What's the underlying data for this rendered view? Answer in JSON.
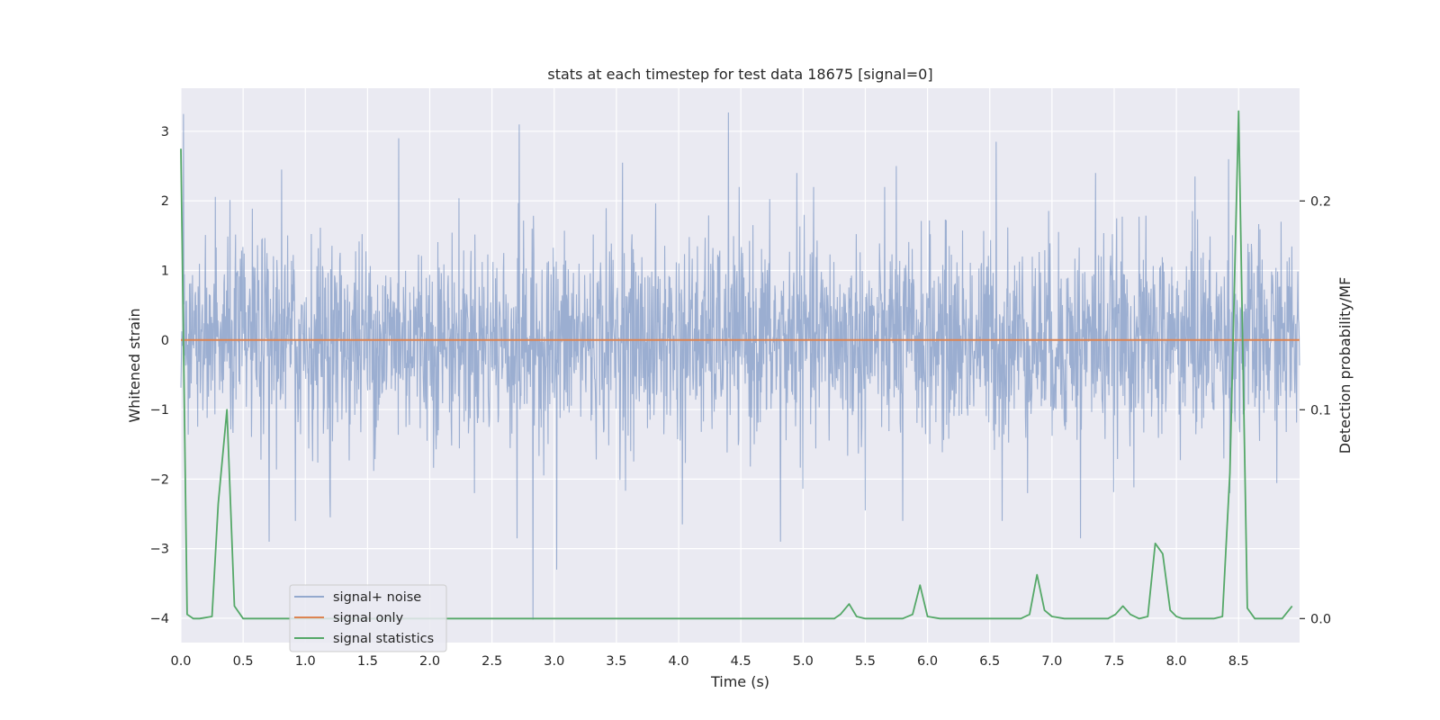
{
  "chart_data": {
    "type": "line",
    "title": "stats at each timestep for test data 18675 [signal=0]",
    "xlabel": "Time (s)",
    "ylabel": "Whitened strain",
    "y2label": "Detection probability/MF",
    "xlim": [
      0.0,
      8.99
    ],
    "ylim": [
      -4.35,
      3.62
    ],
    "y2lim": [
      -0.0115,
      0.254
    ],
    "x_ticks": [
      "0.0",
      "0.5",
      "1.0",
      "1.5",
      "2.0",
      "2.5",
      "3.0",
      "3.5",
      "4.0",
      "4.5",
      "5.0",
      "5.5",
      "6.0",
      "6.5",
      "7.0",
      "7.5",
      "8.0",
      "8.5"
    ],
    "y_ticks": [
      "3",
      "2",
      "1",
      "0",
      "−1",
      "−2",
      "−3",
      "−4"
    ],
    "y2_ticks": [
      "0.2",
      "0.1",
      "0.0"
    ],
    "grid": true,
    "legend_position": "lower-left",
    "series": [
      {
        "name": "signal+ noise",
        "color": "#4c72b0",
        "axis": "left",
        "kind": "noise",
        "x_range": [
          0.0,
          8.99
        ],
        "typical_range": [
          -1.2,
          1.2
        ],
        "envelope_range": [
          -2.2,
          2.2
        ],
        "peaks": [
          {
            "x": 0.02,
            "y": 3.25
          },
          {
            "x": 0.81,
            "y": 2.45
          },
          {
            "x": 1.75,
            "y": 2.9
          },
          {
            "x": 2.72,
            "y": 3.1
          },
          {
            "x": 4.4,
            "y": 3.27
          },
          {
            "x": 6.55,
            "y": 2.85
          },
          {
            "x": 3.55,
            "y": 2.55
          },
          {
            "x": 4.95,
            "y": 2.4
          },
          {
            "x": 8.15,
            "y": 2.35
          },
          {
            "x": 8.42,
            "y": 2.6
          },
          {
            "x": 7.35,
            "y": 2.4
          },
          {
            "x": 5.75,
            "y": 2.5
          },
          {
            "x": 2.83,
            "y": -4.02
          },
          {
            "x": 3.02,
            "y": -3.3
          },
          {
            "x": 0.71,
            "y": -2.9
          },
          {
            "x": 2.7,
            "y": -2.85
          },
          {
            "x": 4.82,
            "y": -2.9
          },
          {
            "x": 7.23,
            "y": -2.85
          },
          {
            "x": 0.92,
            "y": -2.6
          },
          {
            "x": 4.03,
            "y": -2.65
          },
          {
            "x": 5.8,
            "y": -2.6
          },
          {
            "x": 6.6,
            "y": -2.6
          },
          {
            "x": 1.2,
            "y": -2.55
          },
          {
            "x": 5.5,
            "y": -2.45
          }
        ]
      },
      {
        "name": "signal only",
        "color": "#dd8452",
        "axis": "left",
        "x": [
          0.0,
          8.99
        ],
        "y": [
          0.0,
          0.0
        ]
      },
      {
        "name": "signal statistics",
        "color": "#55a868",
        "axis": "right",
        "x": [
          0.0,
          0.05,
          0.1,
          0.15,
          0.25,
          0.3,
          0.37,
          0.43,
          0.5,
          0.6,
          1.0,
          2.0,
          3.0,
          4.0,
          5.0,
          5.25,
          5.3,
          5.37,
          5.43,
          5.5,
          5.8,
          5.88,
          5.94,
          6.0,
          6.1,
          6.5,
          6.75,
          6.82,
          6.88,
          6.94,
          7.0,
          7.1,
          7.45,
          7.51,
          7.57,
          7.63,
          7.7,
          7.77,
          7.83,
          7.89,
          7.95,
          8.0,
          8.05,
          8.1,
          8.3,
          8.37,
          8.43,
          8.5,
          8.57,
          8.63,
          8.7,
          8.85,
          8.93
        ],
        "y": [
          0.225,
          0.002,
          0.0,
          0.0,
          0.001,
          0.055,
          0.1,
          0.006,
          0.0,
          0.0,
          0.0,
          0.0,
          0.0,
          0.0,
          0.0,
          0.0,
          0.002,
          0.007,
          0.001,
          0.0,
          0.0,
          0.002,
          0.016,
          0.001,
          0.0,
          0.0,
          0.0,
          0.002,
          0.021,
          0.004,
          0.001,
          0.0,
          0.0,
          0.002,
          0.006,
          0.002,
          0.0,
          0.001,
          0.036,
          0.031,
          0.004,
          0.001,
          0.0,
          0.0,
          0.0,
          0.001,
          0.07,
          0.243,
          0.005,
          0.0,
          0.0,
          0.0,
          0.006
        ]
      }
    ]
  }
}
